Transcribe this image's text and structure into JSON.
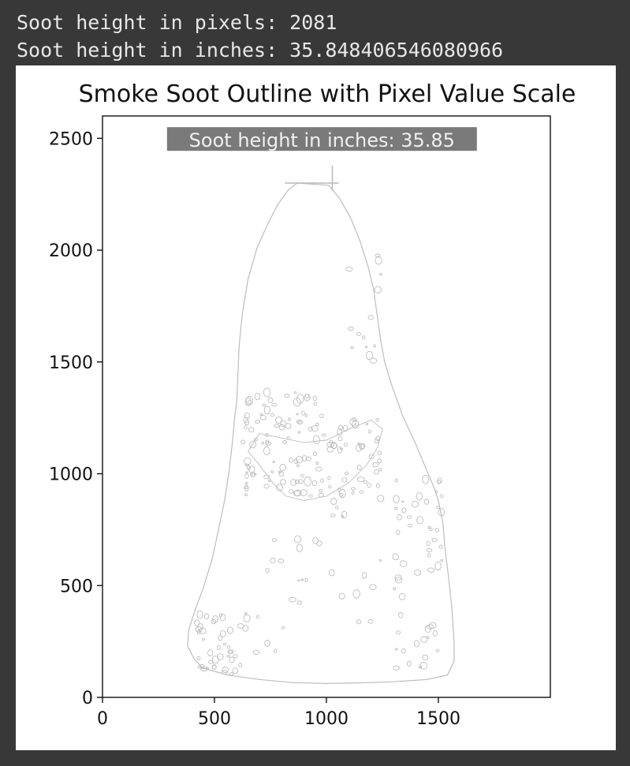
{
  "console": {
    "lines": [
      "Soot height in pixels: 2081",
      "Soot height in inches: 35.848406546080966"
    ]
  },
  "colors": {
    "background": "#383838",
    "console_text": "#e8e8e8",
    "figure_bg": "#ffffff",
    "outline": "#bdbdbd",
    "annotation_bg": "#7a7a7a",
    "annotation_text": "#f0f0f0"
  },
  "chart_data": {
    "type": "image",
    "title": "Smoke Soot Outline with Pixel Value Scale",
    "xlabel": "",
    "ylabel": "",
    "xlim": [
      0,
      2000
    ],
    "ylim": [
      0,
      2600
    ],
    "xticks": [
      0,
      500,
      1000,
      1500
    ],
    "yticks": [
      0,
      500,
      1000,
      1500,
      2000,
      2500
    ],
    "grid": false,
    "annotation": {
      "text": "Soot height in inches: 35.85",
      "x": 980,
      "y": 2490
    },
    "soot_top_marker": {
      "x": 970,
      "y": 2300
    }
  }
}
